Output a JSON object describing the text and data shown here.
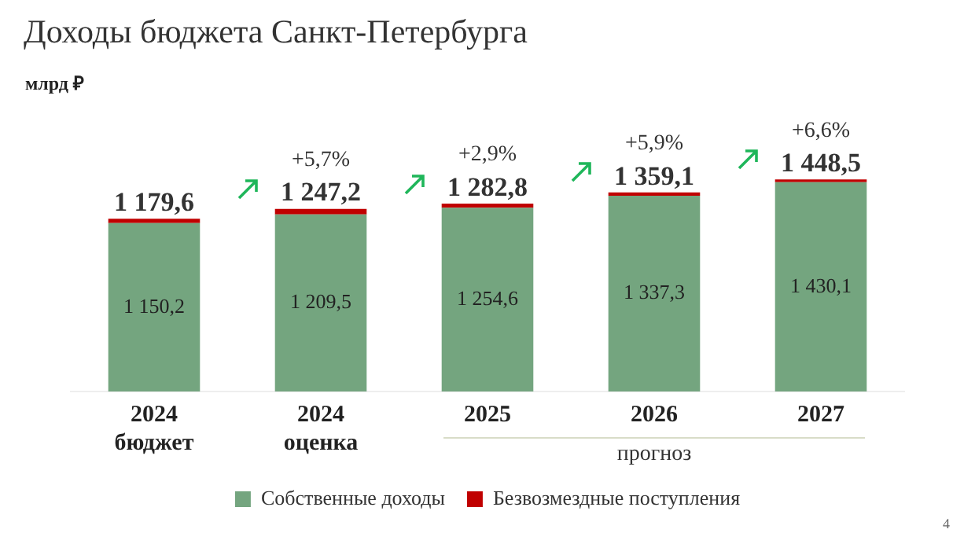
{
  "chart_data": {
    "type": "bar",
    "title": "Доходы бюджета Санкт-Петербурга",
    "subtitle": "млрд ₽",
    "categories": [
      "2024\nбюджет",
      "2024\nоценка",
      "2025",
      "2026",
      "2027"
    ],
    "stacked": true,
    "series": [
      {
        "name": "Собственные доходы",
        "color": "#74a57f",
        "values": [
          1150.2,
          1209.5,
          1254.6,
          1337.3,
          1430.1
        ],
        "value_labels": [
          "1 150,2",
          "1 209,5",
          "1 254,6",
          "1 337,3",
          "1 430,1"
        ]
      },
      {
        "name": "Безвозмездные поступления",
        "color": "#c00000",
        "values": [
          29.4,
          37.7,
          28.2,
          21.8,
          18.4
        ]
      }
    ],
    "totals": [
      "1 179,6",
      "1 247,2",
      "1 282,8",
      "1 359,1",
      "1 448,5"
    ],
    "annotations": [
      {
        "text": "+5,7%",
        "x": "2024\nоценка",
        "y": 1247.2
      },
      {
        "text": "+2,9%",
        "x": "2025",
        "y": 1282.8
      },
      {
        "text": "+5,9%",
        "x": "2026",
        "y": 1359.1
      },
      {
        "text": "+6,6%",
        "x": "2027",
        "y": 1448.5
      },
      "прогноз",
      "4"
    ],
    "legend": "bottom",
    "grid": false
  }
}
